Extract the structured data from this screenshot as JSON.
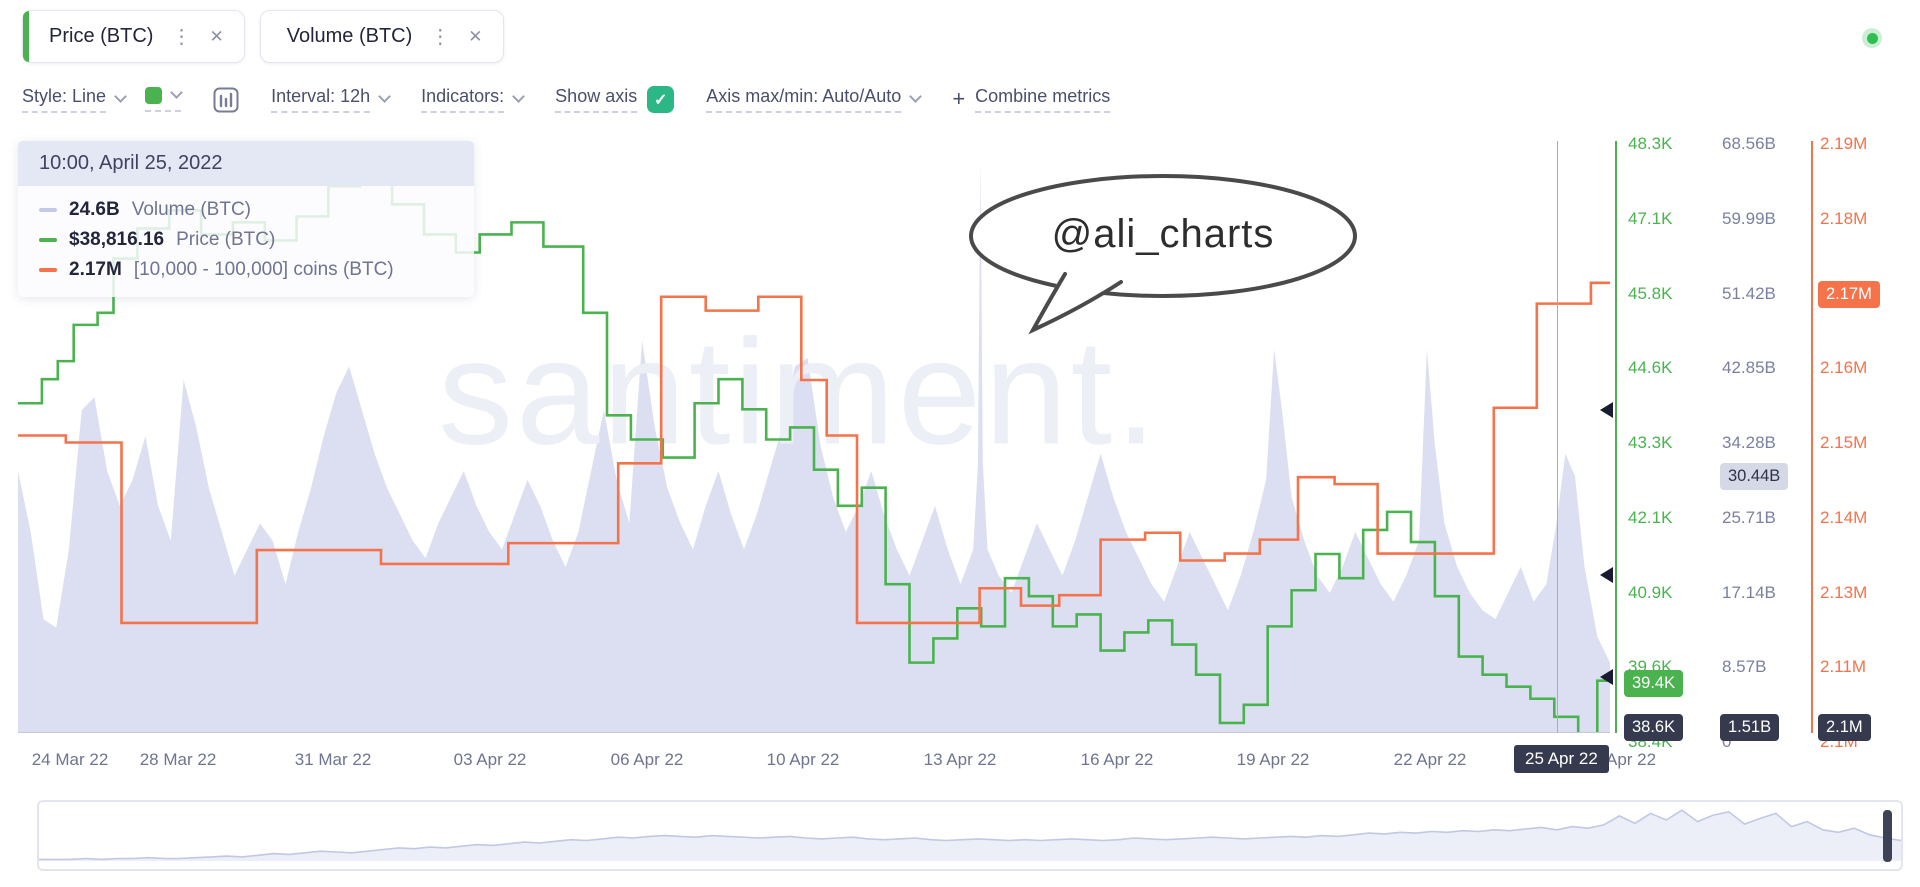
{
  "app": {
    "watermark": "santiment.",
    "status_dot_color": "#2fbf4f"
  },
  "icons": {
    "kebab": "⋮",
    "close": "✕",
    "check": "✓",
    "plus": "+"
  },
  "tabs": [
    {
      "label": "Price (BTC)",
      "active": true
    },
    {
      "label": "Volume (BTC)",
      "active": false
    }
  ],
  "toolbar": {
    "style_label": "Style: Line",
    "interval_label": "Interval: 12h",
    "indicators_label": "Indicators:",
    "show_axis_label": "Show axis",
    "axis_maxmin_label": "Axis max/min: Auto/Auto",
    "combine_label": "Combine metrics"
  },
  "tooltip": {
    "header": "10:00, April 25, 2022",
    "rows": [
      {
        "value": "24.6B",
        "label": "Volume (BTC)",
        "color": "#c3c9ec"
      },
      {
        "value": "$38,816.16",
        "label": "Price (BTC)",
        "color": "#4ab34f"
      },
      {
        "value": "2.17M",
        "label": "[10,000 - 100,000] coins (BTC)",
        "color": "#f4734a"
      }
    ]
  },
  "annotation": {
    "text": "@ali_charts"
  },
  "axes": {
    "price": {
      "color": "#4ab34f",
      "min": 38.4,
      "max": 48.3,
      "labels": [
        "48.3K",
        "47.1K",
        "45.8K",
        "44.6K",
        "43.3K",
        "42.1K",
        "40.9K",
        "39.6K",
        "38.4K"
      ],
      "current_badge": "39.4K",
      "bottom_badge": "38.6K"
    },
    "volume": {
      "color": "#7b80a0",
      "min": 0,
      "max": 68.56,
      "labels": [
        "68.56B",
        "59.99B",
        "51.42B",
        "42.85B",
        "34.28B",
        "25.71B",
        "17.14B",
        "8.57B",
        "0"
      ],
      "current_badge": "30.44B",
      "bottom_badge": "1.51B"
    },
    "coins": {
      "color": "#f4734a",
      "min": 2.104,
      "max": 2.19,
      "labels": [
        "2.19M",
        "2.18M",
        "2.17M",
        "2.16M",
        "2.15M",
        "2.14M",
        "2.13M",
        "2.11M",
        "2.1M"
      ],
      "current_badge": "2.17M",
      "bottom_badge": "2.1M"
    }
  },
  "x_axis": {
    "labels": [
      "24 Mar 22",
      "28 Mar 22",
      "31 Mar 22",
      "03 Apr 22",
      "06 Apr 22",
      "10 Apr 22",
      "13 Apr 22",
      "16 Apr 22",
      "19 Apr 22",
      "22 Apr 22"
    ],
    "highlight_badge": "25 Apr 22",
    "partial_label": "Apr 22"
  },
  "chart_data": {
    "type": "line",
    "title": "",
    "interval": "12h",
    "x_start": "24 Mar 22",
    "x_end": "26 Apr 22",
    "legend_position": "tooltip-top-left",
    "grid": false,
    "crosshair": {
      "x_pct": 96.6,
      "time": "10:00, April 25, 2022",
      "price": "$38,816.16",
      "volume": "24.6B",
      "coins": "2.17M"
    },
    "series": [
      {
        "name": "Price (BTC)",
        "axis": "price",
        "style": "step",
        "color": "#4ab34f",
        "unit": "K USD",
        "points": [
          [
            0,
            44.0
          ],
          [
            1.5,
            44.4
          ],
          [
            2.5,
            44.7
          ],
          [
            3.5,
            45.3
          ],
          [
            5,
            45.5
          ],
          [
            6,
            46.4
          ],
          [
            7.5,
            46.9
          ],
          [
            9.5,
            47.2
          ],
          [
            11.5,
            46.8
          ],
          [
            13.5,
            47.0
          ],
          [
            15.5,
            46.7
          ],
          [
            17.5,
            47.1
          ],
          [
            19.5,
            47.6
          ],
          [
            21.5,
            47.9
          ],
          [
            23.5,
            47.3
          ],
          [
            25.5,
            46.8
          ],
          [
            27.5,
            46.5
          ],
          [
            29,
            46.8
          ],
          [
            31,
            47.0
          ],
          [
            33,
            46.6
          ],
          [
            35.5,
            45.5
          ],
          [
            37,
            43.8
          ],
          [
            38.5,
            43.4
          ],
          [
            40.5,
            43.1
          ],
          [
            42.5,
            44.0
          ],
          [
            44,
            44.4
          ],
          [
            45.5,
            43.9
          ],
          [
            47,
            43.4
          ],
          [
            48.5,
            43.6
          ],
          [
            50,
            42.9
          ],
          [
            51.5,
            42.3
          ],
          [
            53,
            42.6
          ],
          [
            54.5,
            41.0
          ],
          [
            56,
            39.7
          ],
          [
            57.5,
            40.1
          ],
          [
            59,
            40.6
          ],
          [
            60.5,
            40.3
          ],
          [
            62,
            41.1
          ],
          [
            63.5,
            40.8
          ],
          [
            65,
            40.3
          ],
          [
            66.5,
            40.5
          ],
          [
            68,
            39.9
          ],
          [
            69.5,
            40.2
          ],
          [
            71,
            40.4
          ],
          [
            72.5,
            40.0
          ],
          [
            74,
            39.5
          ],
          [
            75.5,
            38.7
          ],
          [
            77,
            39.0
          ],
          [
            78.5,
            40.3
          ],
          [
            80,
            40.9
          ],
          [
            81.5,
            41.5
          ],
          [
            83,
            41.1
          ],
          [
            84.5,
            41.9
          ],
          [
            86,
            42.2
          ],
          [
            87.5,
            41.7
          ],
          [
            89,
            40.8
          ],
          [
            90.5,
            39.8
          ],
          [
            92,
            39.5
          ],
          [
            93.5,
            39.3
          ],
          [
            95,
            39.1
          ],
          [
            96.5,
            38.8
          ],
          [
            98,
            38.5
          ],
          [
            99.2,
            39.4
          ],
          [
            100,
            39.4
          ]
        ]
      },
      {
        "name": "[10,000 - 100,000] coins (BTC)",
        "axis": "coins",
        "style": "step",
        "color": "#f4734a",
        "unit": "M coins",
        "points": [
          [
            0,
            2.148
          ],
          [
            3,
            2.147
          ],
          [
            6.5,
            2.121
          ],
          [
            15,
            2.1315
          ],
          [
            22.8,
            2.1295
          ],
          [
            30.8,
            2.1325
          ],
          [
            37.7,
            2.144
          ],
          [
            40.4,
            2.168
          ],
          [
            43.2,
            2.166
          ],
          [
            46.5,
            2.168
          ],
          [
            49.2,
            2.156
          ],
          [
            50.8,
            2.148
          ],
          [
            52.7,
            2.121
          ],
          [
            60.4,
            2.126
          ],
          [
            63,
            2.1235
          ],
          [
            65.4,
            2.125
          ],
          [
            68,
            2.133
          ],
          [
            70.8,
            2.134
          ],
          [
            73,
            2.13
          ],
          [
            75.8,
            2.131
          ],
          [
            78,
            2.133
          ],
          [
            80.4,
            2.142
          ],
          [
            82.7,
            2.141
          ],
          [
            85.4,
            2.131
          ],
          [
            92.7,
            2.152
          ],
          [
            95.4,
            2.167
          ],
          [
            98.8,
            2.17
          ],
          [
            100,
            2.17
          ]
        ]
      },
      {
        "name": "Volume (BTC)",
        "axis": "volume",
        "style": "area",
        "color": "#dcdff2",
        "unit": "B USD",
        "points": [
          [
            0,
            31
          ],
          [
            0.8,
            24
          ],
          [
            1.6,
            14
          ],
          [
            2.4,
            13
          ],
          [
            3.2,
            22
          ],
          [
            4,
            38
          ],
          [
            4.8,
            39.5
          ],
          [
            5.6,
            31
          ],
          [
            6.4,
            27
          ],
          [
            7.2,
            30
          ],
          [
            8,
            35
          ],
          [
            8.8,
            27
          ],
          [
            9.6,
            23
          ],
          [
            10.4,
            41.5
          ],
          [
            11.2,
            36
          ],
          [
            12,
            29
          ],
          [
            12.8,
            24
          ],
          [
            13.6,
            19
          ],
          [
            14.4,
            22
          ],
          [
            15.2,
            25
          ],
          [
            16,
            23
          ],
          [
            16.8,
            18
          ],
          [
            17.6,
            24
          ],
          [
            18.4,
            29
          ],
          [
            19.2,
            35
          ],
          [
            20,
            40
          ],
          [
            20.8,
            43
          ],
          [
            21.6,
            38
          ],
          [
            22.4,
            33
          ],
          [
            23.2,
            29
          ],
          [
            24,
            26
          ],
          [
            24.8,
            23
          ],
          [
            25.6,
            21
          ],
          [
            26.4,
            25
          ],
          [
            27.2,
            28
          ],
          [
            28,
            31
          ],
          [
            28.8,
            27
          ],
          [
            29.6,
            24
          ],
          [
            30.4,
            22
          ],
          [
            31.2,
            26
          ],
          [
            32,
            30
          ],
          [
            32.8,
            27
          ],
          [
            33.6,
            23
          ],
          [
            34.4,
            20
          ],
          [
            35.2,
            24
          ],
          [
            36,
            31
          ],
          [
            36.8,
            38
          ],
          [
            37.6,
            30
          ],
          [
            38.4,
            25
          ],
          [
            39.2,
            46
          ],
          [
            40,
            36
          ],
          [
            40.8,
            29
          ],
          [
            41.6,
            25
          ],
          [
            42.4,
            22
          ],
          [
            43.2,
            27
          ],
          [
            44,
            31
          ],
          [
            44.8,
            26
          ],
          [
            45.6,
            22
          ],
          [
            46.4,
            26
          ],
          [
            47.2,
            31
          ],
          [
            48,
            36
          ],
          [
            48.8,
            43
          ],
          [
            49.6,
            44
          ],
          [
            50.4,
            34
          ],
          [
            51.2,
            28
          ],
          [
            52,
            24
          ],
          [
            52.8,
            27
          ],
          [
            53.6,
            31
          ],
          [
            54.4,
            26
          ],
          [
            55.2,
            22
          ],
          [
            56,
            19
          ],
          [
            56.8,
            23
          ],
          [
            57.6,
            27
          ],
          [
            58.4,
            22
          ],
          [
            59.2,
            18
          ],
          [
            60,
            22
          ],
          [
            60.3,
            32
          ],
          [
            60.45,
            67
          ],
          [
            60.6,
            32
          ],
          [
            60.9,
            22
          ],
          [
            61.6,
            19
          ],
          [
            62.4,
            17
          ],
          [
            63.2,
            21
          ],
          [
            64,
            25
          ],
          [
            64.8,
            22
          ],
          [
            65.6,
            19
          ],
          [
            66.4,
            23
          ],
          [
            67.2,
            28
          ],
          [
            68,
            33
          ],
          [
            68.8,
            28
          ],
          [
            69.6,
            24
          ],
          [
            70.4,
            21
          ],
          [
            71.2,
            18
          ],
          [
            72,
            16
          ],
          [
            72.8,
            20
          ],
          [
            73.6,
            24
          ],
          [
            74.4,
            21
          ],
          [
            75.2,
            18
          ],
          [
            76,
            15
          ],
          [
            76.8,
            19
          ],
          [
            77.6,
            24
          ],
          [
            78.4,
            30
          ],
          [
            78.9,
            45
          ],
          [
            79.4,
            38
          ],
          [
            80,
            28
          ],
          [
            80.8,
            23
          ],
          [
            81.6,
            19
          ],
          [
            82.4,
            17
          ],
          [
            83.2,
            20
          ],
          [
            84,
            24
          ],
          [
            84.8,
            21
          ],
          [
            85.6,
            18
          ],
          [
            86.4,
            16
          ],
          [
            87.2,
            19
          ],
          [
            88,
            23
          ],
          [
            88.5,
            45
          ],
          [
            89,
            34
          ],
          [
            89.6,
            25
          ],
          [
            90.4,
            20
          ],
          [
            91.2,
            17
          ],
          [
            92,
            15
          ],
          [
            92.8,
            14
          ],
          [
            93.6,
            17
          ],
          [
            94.4,
            20
          ],
          [
            95.2,
            16
          ],
          [
            96,
            18
          ],
          [
            96.6,
            24.6
          ],
          [
            97.2,
            33
          ],
          [
            97.8,
            30.4
          ],
          [
            98.4,
            20
          ],
          [
            99.2,
            12
          ],
          [
            100,
            9
          ]
        ]
      }
    ]
  },
  "minimap": {
    "points": [
      2,
      2,
      2,
      3,
      2,
      3,
      3,
      4,
      3,
      3,
      4,
      5,
      6,
      5,
      7,
      9,
      8,
      10,
      12,
      11,
      10,
      12,
      14,
      16,
      15,
      17,
      16,
      18,
      20,
      19,
      21,
      23,
      22,
      24,
      26,
      25,
      27,
      29,
      28,
      30,
      31,
      30,
      29,
      31,
      30,
      29,
      28,
      29,
      30,
      28,
      27,
      28,
      29,
      27,
      26,
      27,
      28,
      26,
      25,
      26,
      27,
      26,
      25,
      26,
      25,
      26,
      27,
      26,
      25,
      26,
      28,
      27,
      26,
      27,
      28,
      29,
      28,
      27,
      28,
      29,
      30,
      29,
      31,
      30,
      32,
      34,
      33,
      35,
      34,
      36,
      35,
      37,
      36,
      38,
      37,
      39,
      41,
      38,
      42,
      40,
      44,
      55,
      46,
      58,
      50,
      62,
      48,
      56,
      60,
      45,
      52,
      58,
      42,
      48,
      38,
      35,
      40,
      32,
      28,
      25
    ]
  }
}
